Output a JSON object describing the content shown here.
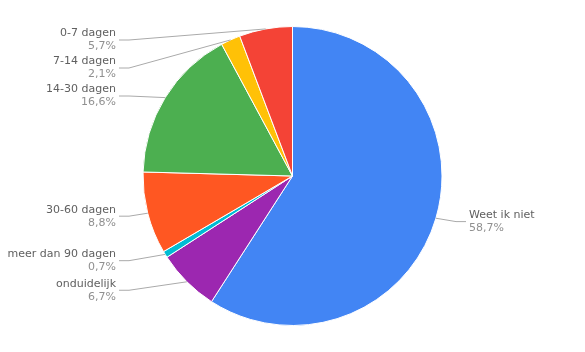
{
  "chart_data": {
    "type": "pie",
    "categories": [
      "Weet ik niet",
      "onduidelijk",
      "meer dan 90 dagen",
      "30-60 dagen",
      "14-30 dagen",
      "7-14 dagen",
      "0-7 dagen"
    ],
    "values": [
      58.7,
      6.7,
      0.7,
      8.8,
      16.6,
      2.1,
      5.7
    ],
    "value_labels": [
      "58,7%",
      "6,7%",
      "0,7%",
      "8,8%",
      "16,6%",
      "2,1%",
      "5,7%"
    ],
    "colors": [
      "#4285F4",
      "#9C27B0",
      "#00BCD4",
      "#FF5722",
      "#4CAF50",
      "#FFC107",
      "#F44336"
    ],
    "data_labels": true
  }
}
